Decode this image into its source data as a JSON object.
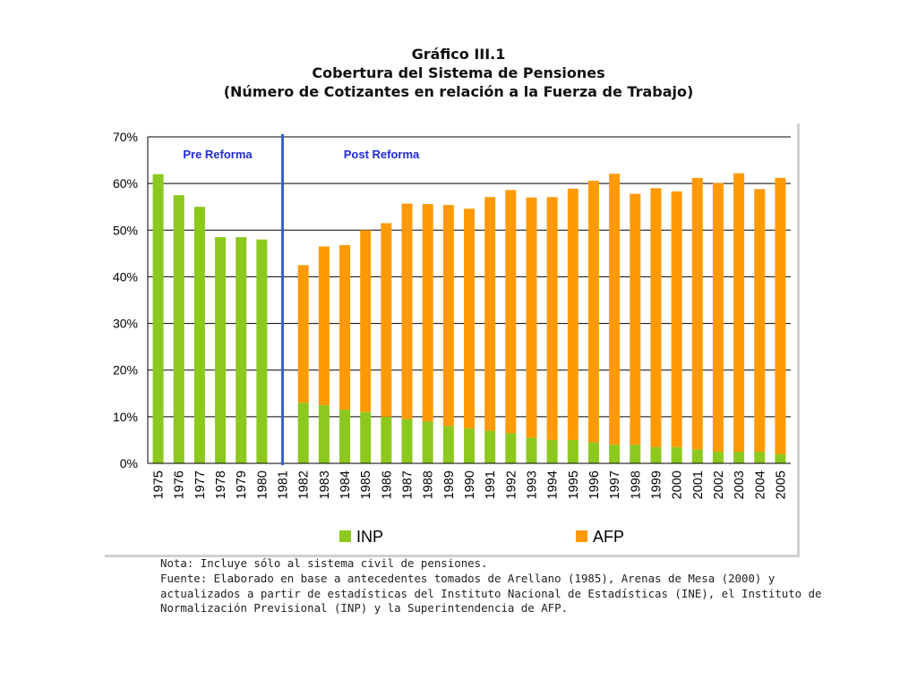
{
  "header": {
    "line1": "Gráfico III.1",
    "line2": "Cobertura del Sistema de Pensiones",
    "line3": "(Número de Cotizantes en relación a la Fuerza de Trabajo)"
  },
  "colors": {
    "inp": "#8cc81e",
    "afp": "#ff9a05",
    "divider": "#3a5fcd",
    "period_label": "#1f2bd6"
  },
  "chart_data": {
    "type": "bar",
    "stacked": true,
    "categories": [
      "1975",
      "1976",
      "1977",
      "1978",
      "1979",
      "1980",
      "1981",
      "1982",
      "1983",
      "1984",
      "1985",
      "1986",
      "1987",
      "1988",
      "1989",
      "1990",
      "1991",
      "1992",
      "1993",
      "1994",
      "1995",
      "1996",
      "1997",
      "1998",
      "1999",
      "2000",
      "2001",
      "2002",
      "2003",
      "2004",
      "2005"
    ],
    "series": [
      {
        "name": "INP",
        "color": "#8cc81e",
        "values": [
          62.0,
          57.5,
          55.0,
          48.5,
          48.5,
          48.0,
          0,
          13.0,
          12.5,
          11.5,
          11.0,
          10.0,
          9.5,
          9.0,
          8.0,
          7.5,
          7.0,
          6.5,
          5.5,
          5.0,
          5.0,
          4.5,
          4.0,
          4.0,
          3.5,
          3.5,
          3.0,
          2.5,
          2.5,
          2.5,
          2.0
        ]
      },
      {
        "name": "AFP",
        "color": "#ff9a05",
        "values": [
          0,
          0,
          0,
          0,
          0,
          0,
          0,
          29.5,
          34.0,
          35.3,
          39.0,
          41.5,
          46.2,
          46.6,
          47.4,
          47.1,
          50.1,
          52.1,
          51.5,
          52.1,
          53.9,
          56.1,
          58.1,
          53.8,
          55.5,
          54.8,
          58.2,
          57.6,
          59.7,
          56.3,
          59.2
        ]
      }
    ],
    "ylim": [
      0,
      70
    ],
    "yticks": [
      "0%",
      "10%",
      "20%",
      "30%",
      "40%",
      "50%",
      "60%",
      "70%"
    ],
    "ytick_values": [
      0,
      10,
      20,
      30,
      40,
      50,
      60,
      70
    ],
    "annotations": {
      "pre": "Pre Reforma",
      "post": "Post Reforma"
    },
    "divider_year": "1981",
    "grid": true,
    "legend_position": "bottom"
  },
  "footer": {
    "lines": [
      "Nota: Incluye sólo al sistema civil de pensiones.",
      "Fuente: Elaborado en base a antecedentes tomados de Arellano (1985), Arenas de Mesa (2000) y",
      "actualizados a partir de estadísticas del Instituto Nacional de Estadísticas (INE), el Instituto de",
      "Normalización Previsional (INP) y la Superintendencia de AFP."
    ]
  }
}
